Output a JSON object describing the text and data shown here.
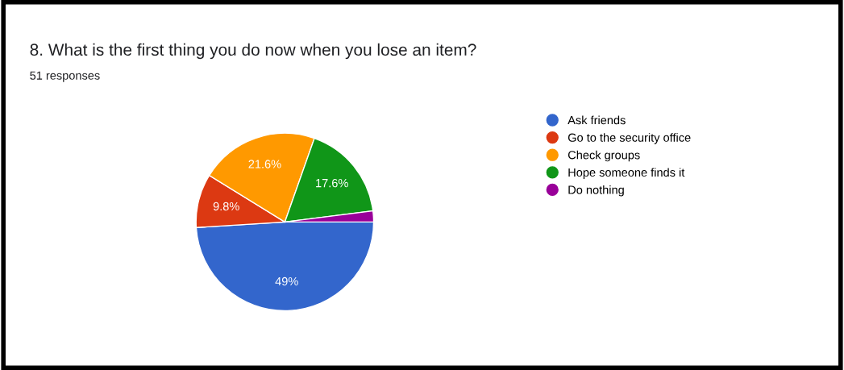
{
  "chart_data": {
    "type": "pie",
    "title": "8. What is the first thing you do now when you lose an item?",
    "subtitle": "51 responses",
    "categories": [
      "Ask friends",
      "Go to the security office",
      "Check groups",
      "Hope someone finds it",
      "Do nothing"
    ],
    "values": [
      49,
      9.8,
      21.6,
      17.6,
      2.0
    ],
    "value_labels": [
      "49%",
      "9.8%",
      "21.6%",
      "17.6%",
      null
    ],
    "colors": [
      "#3366cc",
      "#dc3912",
      "#ff9900",
      "#109618",
      "#990099"
    ],
    "legend": "right"
  }
}
